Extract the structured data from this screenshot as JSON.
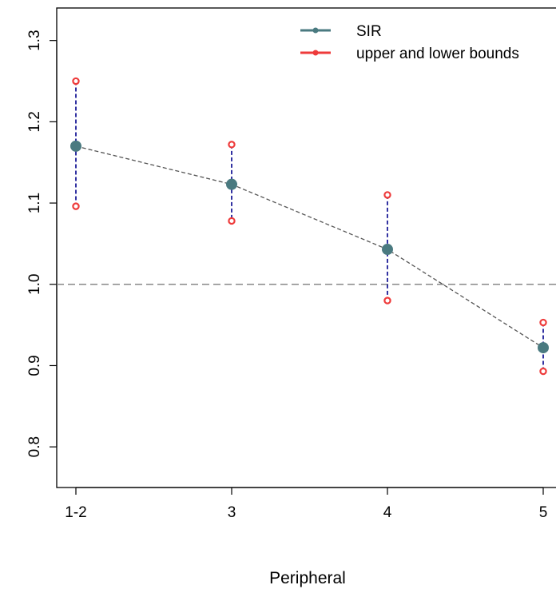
{
  "chart_data": {
    "type": "line",
    "categories": [
      "1-2",
      "3",
      "4",
      "5"
    ],
    "xlabel": "Peripheral",
    "ylabel": "",
    "ylim": [
      0.75,
      1.34
    ],
    "yticks": [
      "0.8",
      "0.9",
      "1.0",
      "1.1",
      "1.2",
      "1.3"
    ],
    "reference_line": 1.0,
    "legend_position": "top-right",
    "series": [
      {
        "name": "SIR",
        "values": [
          1.17,
          1.123,
          1.043,
          0.922
        ],
        "color": "#4a7a80"
      },
      {
        "name": "upper and lower bounds",
        "upper": [
          1.25,
          1.172,
          1.11,
          0.953
        ],
        "lower": [
          1.096,
          1.078,
          0.98,
          0.893
        ],
        "color": "#ee3b3b"
      }
    ],
    "colors": {
      "trend_line": "#555555",
      "interval_line": "#00008b",
      "reference_line": "#888888"
    }
  }
}
